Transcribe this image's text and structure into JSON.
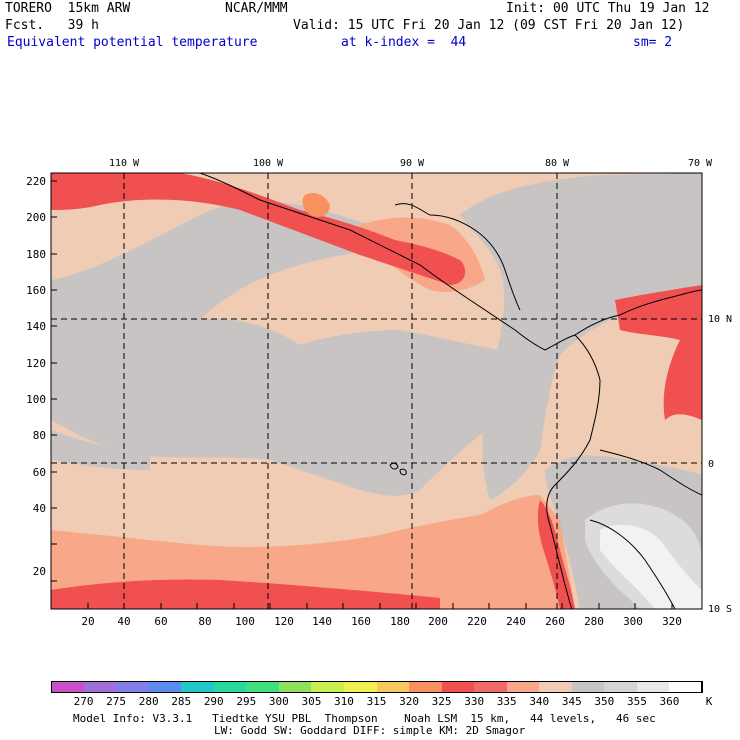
{
  "header": {
    "model": "TORERO  15km ARW",
    "org": "NCAR/MMM",
    "init": "Init: 00 UTC Thu 19 Jan 12",
    "fcst": "Fcst.   39 h",
    "valid": "Valid: 15 UTC Fri 20 Jan 12 (09 CST Fri 20 Jan 12)",
    "field": "Equivalent potential temperature",
    "level": "at k-index =  44",
    "smooth": "sm= 2"
  },
  "map": {
    "lon_labels": [
      "110 W",
      "100 W",
      "90 W",
      "80 W",
      "70 W"
    ],
    "lat_labels": [
      "10 N",
      "0",
      "10 S"
    ],
    "y_ticks": [
      "220",
      "200",
      "180",
      "160",
      "140",
      "120",
      "100",
      "80",
      "60",
      "40",
      "20"
    ],
    "x_ticks": [
      "20",
      "40",
      "60",
      "80",
      "100",
      "120",
      "140",
      "160",
      "180",
      "200",
      "220",
      "240",
      "260",
      "280",
      "300",
      "320"
    ]
  },
  "legend": {
    "labels": [
      "270",
      "275",
      "280",
      "285",
      "290",
      "295",
      "300",
      "305",
      "310",
      "315",
      "320",
      "325",
      "330",
      "335",
      "340",
      "345",
      "350",
      "355",
      "360"
    ],
    "unit": "K",
    "colors": [
      "#c850c8",
      "#a070d8",
      "#8080e8",
      "#5a8cf0",
      "#22c8c8",
      "#28d8a0",
      "#40e080",
      "#90e060",
      "#c8f050",
      "#f0f050",
      "#f8c860",
      "#f89060",
      "#f05050",
      "#f06a6a",
      "#f8a888",
      "#f0ccb4",
      "#c8c4c4",
      "#d4d4d4",
      "#e8e8e8",
      "#ffffff"
    ]
  },
  "footer": {
    "line1": "Model Info: V3.3.1   Tiedtke YSU PBL  Thompson    Noah LSM  15 km,   44 levels,   46 sec",
    "line2": "LW: Godd SW: Goddard DIFF: simple KM: 2D Smagor"
  }
}
